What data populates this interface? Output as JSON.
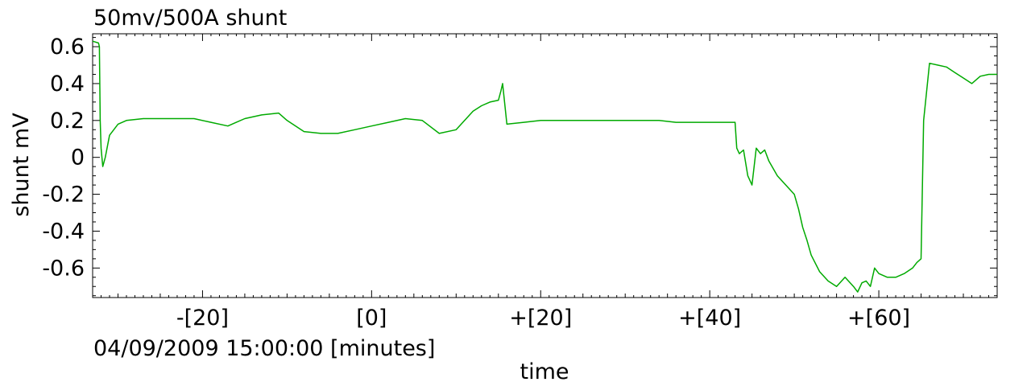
{
  "chart_data": {
    "type": "line",
    "title": "50mv/500A shunt",
    "xlabel": "time",
    "ylabel": "shunt mV",
    "x_origin_label": "04/09/2009 15:00:00 [minutes]",
    "xlim": [
      -33,
      74
    ],
    "ylim": [
      -0.76,
      0.67
    ],
    "x_ticks": [
      -20,
      0,
      20,
      40,
      60
    ],
    "x_tick_labels": [
      "-[20]",
      "[0]",
      "+[20]",
      "+[40]",
      "+[60]"
    ],
    "y_ticks": [
      0.6,
      0.4,
      0.2,
      0,
      -0.2,
      -0.4,
      -0.6
    ],
    "y_tick_labels": [
      "0.6",
      "0.4",
      "0.2",
      "0",
      "-0.2",
      "-0.4",
      "-0.6"
    ],
    "grid": false,
    "series": [
      {
        "color": "#00aa00",
        "x": [
          -33,
          -32.3,
          -32.2,
          -32.1,
          -32,
          -31.8,
          -31.5,
          -31,
          -30,
          -29,
          -27,
          -25,
          -23,
          -21,
          -19,
          -17,
          -16,
          -15,
          -13,
          -11,
          -10,
          -8,
          -6,
          -4,
          -2,
          0,
          2,
          4,
          6,
          8,
          10,
          11,
          12,
          13,
          14,
          15,
          15.3,
          15.5,
          16,
          18,
          20,
          22,
          24,
          26,
          28,
          30,
          32,
          34,
          36,
          38,
          40,
          42,
          43,
          43.2,
          43.5,
          44,
          44.5,
          45,
          45.5,
          46,
          46.5,
          47,
          48,
          49,
          50,
          50.5,
          51,
          51.5,
          52,
          53,
          54,
          55,
          56,
          57,
          57.5,
          58,
          58.5,
          59,
          59.5,
          60,
          61,
          62,
          63,
          64,
          64.5,
          65,
          65.3,
          66,
          67,
          68,
          69,
          70,
          71,
          72,
          73,
          74
        ],
        "y": [
          0.63,
          0.62,
          0.6,
          0.2,
          0.05,
          -0.05,
          0.0,
          0.12,
          0.18,
          0.2,
          0.21,
          0.21,
          0.21,
          0.21,
          0.19,
          0.17,
          0.19,
          0.21,
          0.23,
          0.24,
          0.2,
          0.14,
          0.13,
          0.13,
          0.15,
          0.17,
          0.19,
          0.21,
          0.2,
          0.13,
          0.15,
          0.2,
          0.25,
          0.28,
          0.3,
          0.31,
          0.36,
          0.4,
          0.18,
          0.19,
          0.2,
          0.2,
          0.2,
          0.2,
          0.2,
          0.2,
          0.2,
          0.2,
          0.19,
          0.19,
          0.19,
          0.19,
          0.19,
          0.05,
          0.02,
          0.04,
          -0.1,
          -0.15,
          0.05,
          0.02,
          0.04,
          -0.02,
          -0.1,
          -0.15,
          -0.2,
          -0.28,
          -0.38,
          -0.45,
          -0.53,
          -0.62,
          -0.67,
          -0.7,
          -0.65,
          -0.7,
          -0.73,
          -0.68,
          -0.67,
          -0.7,
          -0.6,
          -0.63,
          -0.65,
          -0.65,
          -0.63,
          -0.6,
          -0.57,
          -0.55,
          0.2,
          0.51,
          0.5,
          0.49,
          0.46,
          0.43,
          0.4,
          0.44,
          0.45,
          0.45
        ]
      }
    ]
  }
}
